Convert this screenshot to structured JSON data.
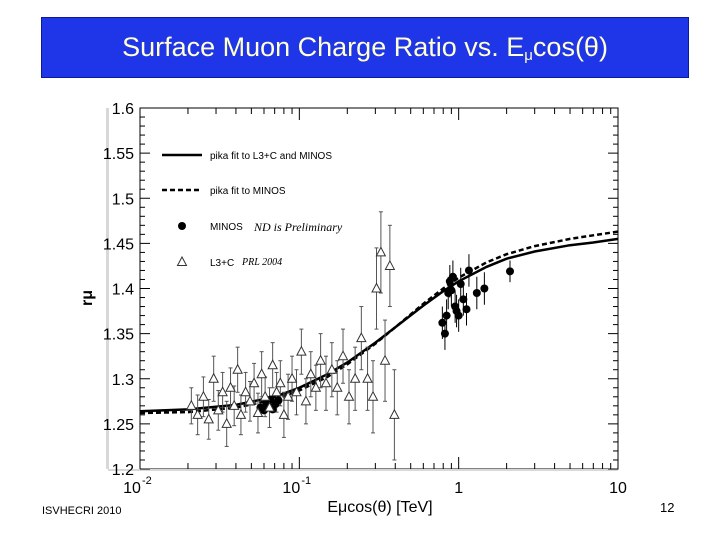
{
  "slide": {
    "title_main": "Surface Muon Charge Ratio vs. E",
    "title_sub": "μ",
    "title_tail": "cos(θ)",
    "footer_left": "ISVHECRI 2010",
    "page_number": "12"
  },
  "chart_data": {
    "type": "scatter",
    "xscale": "log",
    "xlim": [
      0.01,
      10
    ],
    "ylim": [
      1.2,
      1.6
    ],
    "xlabel": "Eμcos(θ) [TeV]",
    "ylabel": "rμ",
    "x_ticks": [
      {
        "value": 0.01,
        "label": "10",
        "exp": "-2"
      },
      {
        "value": 0.1,
        "label": "10",
        "exp": "-1"
      },
      {
        "value": 1,
        "label": "1",
        "exp": ""
      },
      {
        "value": 10,
        "label": "10",
        "exp": ""
      }
    ],
    "y_ticks": [
      1.2,
      1.25,
      1.3,
      1.35,
      1.4,
      1.45,
      1.5,
      1.55,
      1.6
    ],
    "y_tick_labels": [
      "1.2",
      "1.25",
      "1.3",
      "1.35",
      "1.4",
      "1.45",
      "1.5",
      "1.55",
      "1.6"
    ],
    "legend_position": "top-left",
    "legend": [
      {
        "label": "pika fit to L3+C and MINOS",
        "style": "solid-line"
      },
      {
        "label": "pika fit to MINOS",
        "style": "dashed-line"
      },
      {
        "label": "MINOS",
        "style": "filled-circle",
        "note": "ND is Preliminary"
      },
      {
        "label": "L3+C",
        "style": "open-triangle",
        "note": "PRL 2004"
      }
    ],
    "fit_lines": [
      {
        "name": "pika fit to L3+C and MINOS",
        "style": "solid",
        "x": [
          0.01,
          0.02,
          0.04,
          0.07,
          0.1,
          0.15,
          0.2,
          0.3,
          0.4,
          0.6,
          0.8,
          1.0,
          1.5,
          2,
          3,
          5,
          7,
          10
        ],
        "y": [
          1.264,
          1.266,
          1.271,
          1.28,
          1.29,
          1.305,
          1.318,
          1.34,
          1.357,
          1.381,
          1.397,
          1.408,
          1.424,
          1.433,
          1.441,
          1.448,
          1.451,
          1.455
        ]
      },
      {
        "name": "pika fit to MINOS",
        "style": "dashed",
        "x": [
          0.01,
          0.02,
          0.04,
          0.07,
          0.1,
          0.15,
          0.2,
          0.3,
          0.4,
          0.6,
          0.8,
          1.0,
          1.5,
          2,
          3,
          5,
          7,
          10
        ],
        "y": [
          1.262,
          1.263,
          1.268,
          1.277,
          1.287,
          1.302,
          1.316,
          1.339,
          1.357,
          1.383,
          1.4,
          1.412,
          1.429,
          1.438,
          1.447,
          1.455,
          1.459,
          1.463
        ]
      }
    ],
    "series": [
      {
        "name": "MINOS",
        "marker": "filled-circle",
        "points": [
          {
            "x": 0.057,
            "y": 1.268,
            "err": 0.004
          },
          {
            "x": 0.06,
            "y": 1.265,
            "err": 0.004
          },
          {
            "x": 0.062,
            "y": 1.272,
            "err": 0.004
          },
          {
            "x": 0.064,
            "y": 1.27,
            "err": 0.004
          },
          {
            "x": 0.066,
            "y": 1.277,
            "err": 0.004
          },
          {
            "x": 0.068,
            "y": 1.266,
            "err": 0.004
          },
          {
            "x": 0.071,
            "y": 1.272,
            "err": 0.004
          },
          {
            "x": 0.074,
            "y": 1.276,
            "err": 0.004
          },
          {
            "x": 0.79,
            "y": 1.362,
            "err": 0.018
          },
          {
            "x": 0.82,
            "y": 1.35,
            "err": 0.018
          },
          {
            "x": 0.84,
            "y": 1.37,
            "err": 0.018
          },
          {
            "x": 0.86,
            "y": 1.395,
            "err": 0.018
          },
          {
            "x": 0.88,
            "y": 1.408,
            "err": 0.018
          },
          {
            "x": 0.9,
            "y": 1.398,
            "err": 0.018
          },
          {
            "x": 0.92,
            "y": 1.413,
            "err": 0.018
          },
          {
            "x": 0.95,
            "y": 1.38,
            "err": 0.018
          },
          {
            "x": 0.97,
            "y": 1.375,
            "err": 0.018
          },
          {
            "x": 1.0,
            "y": 1.37,
            "err": 0.018
          },
          {
            "x": 1.03,
            "y": 1.405,
            "err": 0.018
          },
          {
            "x": 1.07,
            "y": 1.388,
            "err": 0.018
          },
          {
            "x": 1.12,
            "y": 1.377,
            "err": 0.018
          },
          {
            "x": 1.16,
            "y": 1.42,
            "err": 0.018
          },
          {
            "x": 1.3,
            "y": 1.395,
            "err": 0.018
          },
          {
            "x": 1.45,
            "y": 1.4,
            "err": 0.018
          },
          {
            "x": 2.1,
            "y": 1.419,
            "err": 0.012
          }
        ]
      },
      {
        "name": "L3+C",
        "marker": "open-triangle",
        "points": [
          {
            "x": 0.021,
            "y": 1.27,
            "err": 0.02
          },
          {
            "x": 0.023,
            "y": 1.26,
            "err": 0.022
          },
          {
            "x": 0.025,
            "y": 1.28,
            "err": 0.022
          },
          {
            "x": 0.027,
            "y": 1.255,
            "err": 0.022
          },
          {
            "x": 0.029,
            "y": 1.3,
            "err": 0.025
          },
          {
            "x": 0.031,
            "y": 1.265,
            "err": 0.022
          },
          {
            "x": 0.033,
            "y": 1.285,
            "err": 0.022
          },
          {
            "x": 0.035,
            "y": 1.25,
            "err": 0.025
          },
          {
            "x": 0.037,
            "y": 1.29,
            "err": 0.022
          },
          {
            "x": 0.039,
            "y": 1.27,
            "err": 0.022
          },
          {
            "x": 0.041,
            "y": 1.31,
            "err": 0.025
          },
          {
            "x": 0.043,
            "y": 1.26,
            "err": 0.022
          },
          {
            "x": 0.046,
            "y": 1.285,
            "err": 0.022
          },
          {
            "x": 0.049,
            "y": 1.275,
            "err": 0.022
          },
          {
            "x": 0.052,
            "y": 1.295,
            "err": 0.022
          },
          {
            "x": 0.055,
            "y": 1.262,
            "err": 0.022
          },
          {
            "x": 0.058,
            "y": 1.305,
            "err": 0.025
          },
          {
            "x": 0.061,
            "y": 1.28,
            "err": 0.022
          },
          {
            "x": 0.065,
            "y": 1.268,
            "err": 0.022
          },
          {
            "x": 0.068,
            "y": 1.315,
            "err": 0.025
          },
          {
            "x": 0.072,
            "y": 1.285,
            "err": 0.022
          },
          {
            "x": 0.076,
            "y": 1.295,
            "err": 0.025
          },
          {
            "x": 0.08,
            "y": 1.26,
            "err": 0.025
          },
          {
            "x": 0.085,
            "y": 1.28,
            "err": 0.025
          },
          {
            "x": 0.09,
            "y": 1.3,
            "err": 0.025
          },
          {
            "x": 0.096,
            "y": 1.285,
            "err": 0.025
          },
          {
            "x": 0.103,
            "y": 1.33,
            "err": 0.025
          },
          {
            "x": 0.11,
            "y": 1.275,
            "err": 0.025
          },
          {
            "x": 0.118,
            "y": 1.305,
            "err": 0.025
          },
          {
            "x": 0.127,
            "y": 1.29,
            "err": 0.025
          },
          {
            "x": 0.136,
            "y": 1.32,
            "err": 0.03
          },
          {
            "x": 0.147,
            "y": 1.295,
            "err": 0.03
          },
          {
            "x": 0.16,
            "y": 1.31,
            "err": 0.03
          },
          {
            "x": 0.173,
            "y": 1.29,
            "err": 0.03
          },
          {
            "x": 0.188,
            "y": 1.325,
            "err": 0.03
          },
          {
            "x": 0.205,
            "y": 1.28,
            "err": 0.03
          },
          {
            "x": 0.224,
            "y": 1.3,
            "err": 0.035
          },
          {
            "x": 0.245,
            "y": 1.345,
            "err": 0.035
          },
          {
            "x": 0.268,
            "y": 1.3,
            "err": 0.035
          },
          {
            "x": 0.29,
            "y": 1.28,
            "err": 0.04
          },
          {
            "x": 0.305,
            "y": 1.4,
            "err": 0.045
          },
          {
            "x": 0.325,
            "y": 1.44,
            "err": 0.045
          },
          {
            "x": 0.345,
            "y": 1.32,
            "err": 0.045
          },
          {
            "x": 0.37,
            "y": 1.425,
            "err": 0.045
          },
          {
            "x": 0.395,
            "y": 1.26,
            "err": 0.05
          }
        ]
      }
    ]
  }
}
